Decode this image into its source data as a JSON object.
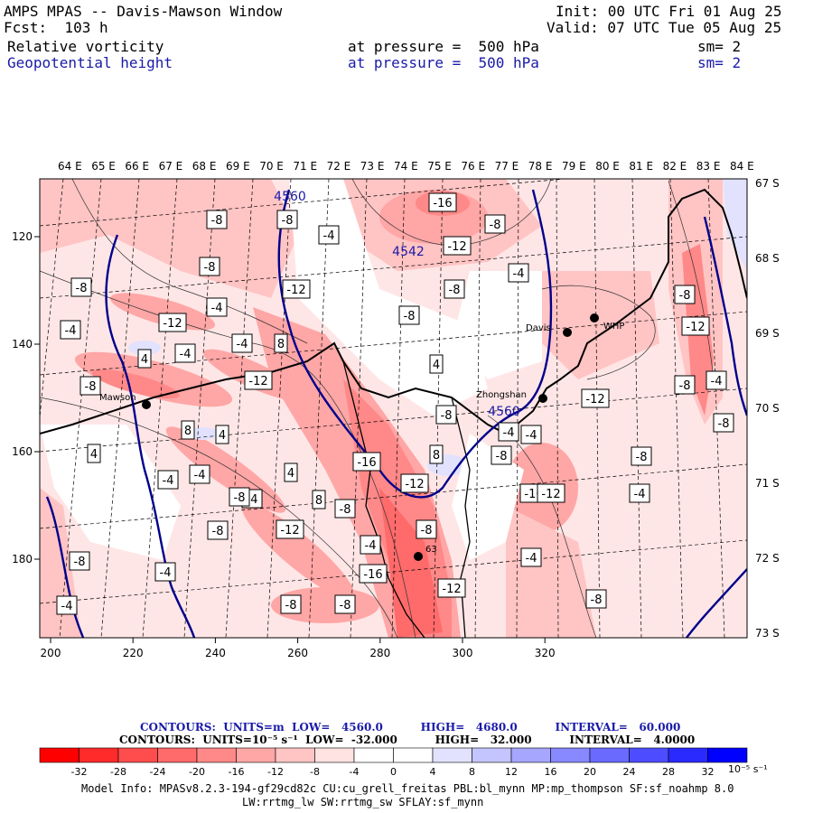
{
  "header": {
    "title": "AMPS MPAS -- Davis-Mawson Window",
    "fcst": "Fcst:  103 h",
    "init": "Init: 00 UTC Fri 01 Aug 25",
    "valid": "Valid: 07 UTC Tue 05 Aug 25",
    "field1": "Relative vorticity",
    "field1_level": "at pressure =  500 hPa",
    "field1_sm": "sm= 2",
    "field2": "Geopotential height",
    "field2_level": "at pressure =  500 hPa",
    "field2_sm": "sm= 2"
  },
  "map": {
    "top_lon_labels": [
      "64 E",
      "65 E",
      "66 E",
      "67 E",
      "68 E",
      "69 E",
      "70 E",
      "71 E",
      "72 E",
      "73 E",
      "74 E",
      "75 E",
      "76 E",
      "77 E",
      "78 E",
      "79 E",
      "80 E",
      "81 E",
      "82 E",
      "83 E",
      "84 E"
    ],
    "right_lat_labels": [
      "67 S",
      "68 S",
      "69 S",
      "70 S",
      "71 S",
      "72 S",
      "73 S"
    ],
    "x_ticks": [
      "200",
      "220",
      "240",
      "260",
      "280",
      "300",
      "320"
    ],
    "y_ticks": [
      "120",
      "140",
      "160",
      "180"
    ],
    "stations": [
      {
        "name": "Mawson",
        "symbol": "dot"
      },
      {
        "name": "Davis",
        "symbol": "dot"
      },
      {
        "name": "Zhongshan",
        "symbol": "dot"
      },
      {
        "name": "WHP",
        "symbol": "dot"
      },
      {
        "name": "63",
        "symbol": "dot"
      }
    ],
    "height_labels": [
      "4560",
      "4542",
      "4560"
    ],
    "vorticity_box_labels": [
      "-8",
      "-8",
      "-4",
      "-16",
      "-8",
      "-12",
      "-8",
      "-8",
      "-4",
      "-4",
      "-8",
      "-12",
      "-12",
      "-8",
      "-4",
      "-12",
      "-8",
      "-4",
      "-4",
      "4",
      "8",
      "-8",
      "4",
      "-12",
      "-8",
      "-4",
      "8",
      "-8",
      "-16",
      "-8",
      "4",
      "4",
      "-4",
      "-4",
      "-12",
      "-8",
      "-4",
      "8",
      "-4",
      "-12",
      "4",
      "-4",
      "-8",
      "-16",
      "8",
      "-12",
      "-8",
      "-8",
      "-4",
      "-8",
      "-4",
      "-12",
      "-4",
      "-8",
      "-16",
      "-4",
      "-8",
      "-12",
      "-8",
      "-4",
      "-8",
      "-8"
    ]
  },
  "colorbar": {
    "ticks": [
      "-32",
      "-28",
      "-24",
      "-20",
      "-16",
      "-12",
      "-8",
      "-4",
      "0",
      "4",
      "8",
      "12",
      "16",
      "20",
      "24",
      "28",
      "32"
    ],
    "colors": [
      "#ff0000",
      "#ff2a2a",
      "#ff4d4d",
      "#ff6a6a",
      "#ff8888",
      "#ffa6a6",
      "#ffc4c4",
      "#ffe2e2",
      "#ffffff",
      "#ffffff",
      "#e2e2ff",
      "#c4c4ff",
      "#a6a6ff",
      "#8888ff",
      "#6a6aff",
      "#4d4dff",
      "#2a2aff",
      "#0000ff"
    ],
    "units": "10⁻⁵ s⁻¹",
    "contour_line1": "CONTOURS:  UNITS=m  LOW=   4560.0          HIGH=   4680.0          INTERVAL=   60.000",
    "contour_line2": "CONTOURS:  UNITS=10⁻⁵ s⁻¹  LOW=  -32.000          HIGH=   32.000          INTERVAL=   4.0000"
  },
  "footer": {
    "model_line1": "Model Info: MPASv8.2.3-194-gf29cd82c CU:cu_grell_freitas PBL:bl_mynn MP:mp_thompson SF:sf_noahmp 8.0",
    "model_line2": "LW:rrtmg_lw SW:rrtmg_sw SFLAY:sf_mynn"
  }
}
